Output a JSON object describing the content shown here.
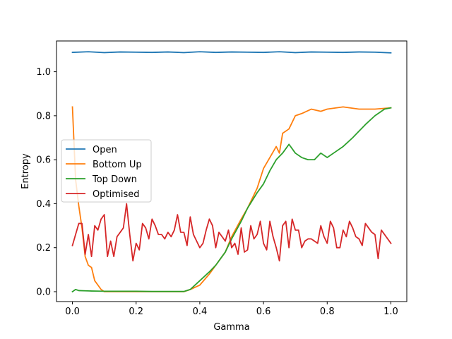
{
  "chart_data": {
    "type": "line",
    "xlabel": "Gamma",
    "ylabel": "Entropy",
    "xlim": [
      -0.05,
      1.05
    ],
    "ylim": [
      -0.045,
      1.14
    ],
    "xticks": [
      0.0,
      0.2,
      0.4,
      0.6,
      0.8,
      1.0
    ],
    "xtick_labels": [
      "0.0",
      "0.2",
      "0.4",
      "0.6",
      "0.8",
      "1.0"
    ],
    "yticks": [
      0.0,
      0.2,
      0.4,
      0.6,
      0.8,
      1.0
    ],
    "ytick_labels": [
      "0.0",
      "0.2",
      "0.4",
      "0.6",
      "0.8",
      "1.0"
    ],
    "grid": false,
    "legend_position": "center-left",
    "series": [
      {
        "name": "Open",
        "color": "#1f77b4",
        "x": [
          0.0,
          0.05,
          0.1,
          0.15,
          0.2,
          0.25,
          0.3,
          0.35,
          0.4,
          0.45,
          0.5,
          0.55,
          0.6,
          0.65,
          0.7,
          0.75,
          0.8,
          0.85,
          0.9,
          0.95,
          1.0
        ],
        "values": [
          1.088,
          1.091,
          1.087,
          1.09,
          1.089,
          1.088,
          1.09,
          1.087,
          1.091,
          1.088,
          1.09,
          1.089,
          1.088,
          1.091,
          1.087,
          1.09,
          1.089,
          1.088,
          1.09,
          1.089,
          1.086
        ]
      },
      {
        "name": "Bottom Up",
        "color": "#ff7f0e",
        "x": [
          0.0,
          0.01,
          0.02,
          0.03,
          0.04,
          0.05,
          0.06,
          0.07,
          0.08,
          0.09,
          0.1,
          0.15,
          0.2,
          0.25,
          0.3,
          0.35,
          0.37,
          0.4,
          0.43,
          0.45,
          0.48,
          0.5,
          0.53,
          0.55,
          0.58,
          0.6,
          0.62,
          0.64,
          0.65,
          0.66,
          0.68,
          0.7,
          0.72,
          0.75,
          0.78,
          0.8,
          0.85,
          0.9,
          0.95,
          1.0
        ],
        "values": [
          0.84,
          0.51,
          0.39,
          0.29,
          0.16,
          0.12,
          0.11,
          0.05,
          0.03,
          0.01,
          0.0,
          0.0,
          0.0,
          0.0,
          0.0,
          0.0,
          0.01,
          0.03,
          0.08,
          0.12,
          0.18,
          0.25,
          0.33,
          0.38,
          0.47,
          0.56,
          0.61,
          0.66,
          0.63,
          0.72,
          0.74,
          0.8,
          0.81,
          0.83,
          0.82,
          0.83,
          0.84,
          0.83,
          0.83,
          0.836
        ]
      },
      {
        "name": "Top Down",
        "color": "#2ca02c",
        "x": [
          0.0,
          0.01,
          0.02,
          0.04,
          0.06,
          0.1,
          0.15,
          0.2,
          0.25,
          0.3,
          0.35,
          0.37,
          0.4,
          0.43,
          0.45,
          0.48,
          0.5,
          0.53,
          0.55,
          0.58,
          0.6,
          0.62,
          0.64,
          0.66,
          0.68,
          0.69,
          0.7,
          0.72,
          0.74,
          0.76,
          0.78,
          0.8,
          0.82,
          0.85,
          0.88,
          0.9,
          0.92,
          0.95,
          0.98,
          1.0
        ],
        "values": [
          0.0,
          0.01,
          0.005,
          0.004,
          0.003,
          0.002,
          0.002,
          0.002,
          0.001,
          0.001,
          0.001,
          0.01,
          0.05,
          0.09,
          0.12,
          0.18,
          0.24,
          0.32,
          0.38,
          0.45,
          0.49,
          0.55,
          0.6,
          0.63,
          0.67,
          0.65,
          0.63,
          0.61,
          0.6,
          0.6,
          0.63,
          0.61,
          0.63,
          0.66,
          0.7,
          0.73,
          0.76,
          0.8,
          0.83,
          0.836
        ]
      },
      {
        "name": "Optimised",
        "color": "#d62728",
        "x": [
          0.0,
          0.01,
          0.02,
          0.03,
          0.04,
          0.05,
          0.06,
          0.07,
          0.08,
          0.09,
          0.1,
          0.11,
          0.12,
          0.13,
          0.14,
          0.15,
          0.16,
          0.17,
          0.18,
          0.19,
          0.2,
          0.21,
          0.22,
          0.23,
          0.24,
          0.25,
          0.26,
          0.27,
          0.28,
          0.29,
          0.3,
          0.31,
          0.32,
          0.33,
          0.34,
          0.35,
          0.36,
          0.37,
          0.38,
          0.39,
          0.4,
          0.41,
          0.42,
          0.43,
          0.44,
          0.45,
          0.46,
          0.47,
          0.48,
          0.49,
          0.5,
          0.51,
          0.52,
          0.53,
          0.54,
          0.55,
          0.56,
          0.57,
          0.58,
          0.59,
          0.6,
          0.61,
          0.62,
          0.63,
          0.64,
          0.65,
          0.66,
          0.67,
          0.68,
          0.69,
          0.7,
          0.71,
          0.72,
          0.73,
          0.74,
          0.75,
          0.76,
          0.77,
          0.78,
          0.79,
          0.8,
          0.81,
          0.82,
          0.83,
          0.84,
          0.85,
          0.86,
          0.87,
          0.88,
          0.89,
          0.9,
          0.91,
          0.92,
          0.93,
          0.94,
          0.95,
          0.96,
          0.97,
          0.98,
          0.99,
          1.0
        ],
        "values": [
          0.21,
          0.26,
          0.31,
          0.31,
          0.17,
          0.26,
          0.16,
          0.3,
          0.28,
          0.33,
          0.35,
          0.16,
          0.23,
          0.16,
          0.25,
          0.27,
          0.29,
          0.4,
          0.26,
          0.14,
          0.22,
          0.19,
          0.31,
          0.29,
          0.24,
          0.33,
          0.3,
          0.26,
          0.26,
          0.24,
          0.27,
          0.25,
          0.28,
          0.35,
          0.27,
          0.27,
          0.21,
          0.34,
          0.26,
          0.23,
          0.2,
          0.22,
          0.28,
          0.33,
          0.3,
          0.2,
          0.27,
          0.25,
          0.23,
          0.28,
          0.2,
          0.22,
          0.17,
          0.29,
          0.18,
          0.19,
          0.3,
          0.24,
          0.26,
          0.32,
          0.22,
          0.19,
          0.32,
          0.25,
          0.2,
          0.14,
          0.3,
          0.32,
          0.2,
          0.33,
          0.28,
          0.28,
          0.2,
          0.23,
          0.24,
          0.24,
          0.23,
          0.22,
          0.3,
          0.25,
          0.22,
          0.32,
          0.29,
          0.2,
          0.2,
          0.28,
          0.25,
          0.32,
          0.29,
          0.25,
          0.24,
          0.21,
          0.31,
          0.29,
          0.27,
          0.26,
          0.15,
          0.28,
          0.26,
          0.24,
          0.22
        ]
      }
    ]
  }
}
